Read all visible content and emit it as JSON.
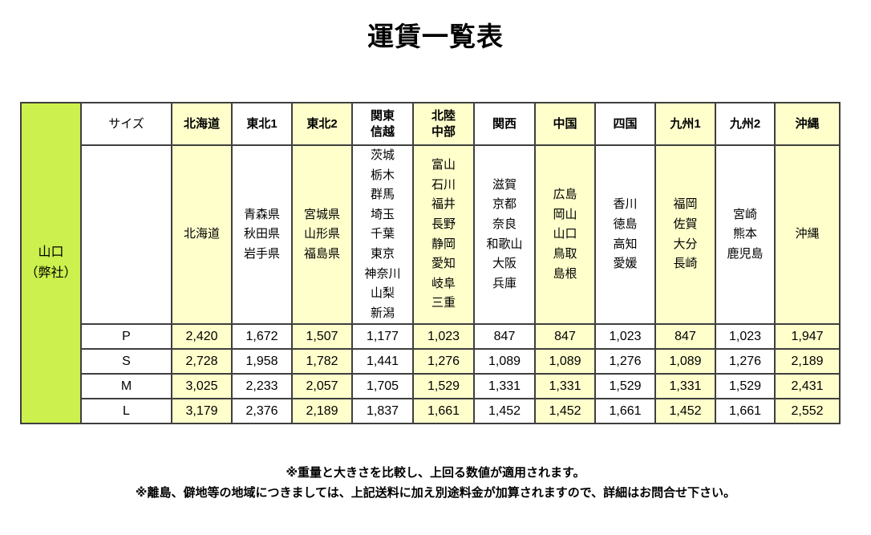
{
  "title": "運賃一覧表",
  "colors": {
    "origin_green": "#ccf04d",
    "pale_yellow": "#ffffcc",
    "border": "#3f3f3f",
    "text": "#000000"
  },
  "table": {
    "origin_label": "山口\n（弊社）",
    "size_header": "サイズ",
    "regions": [
      {
        "label": "北海道",
        "prefectures": [
          "北海道"
        ]
      },
      {
        "label": "東北1",
        "prefectures": [
          "青森県",
          "秋田県",
          "岩手県"
        ]
      },
      {
        "label": "東北2",
        "prefectures": [
          "宮城県",
          "山形県",
          "福島県"
        ]
      },
      {
        "label": "関東\n信越",
        "prefectures": [
          "茨城",
          "栃木",
          "群馬",
          "埼玉",
          "千葉",
          "東京",
          "神奈川",
          "山梨",
          "新潟"
        ]
      },
      {
        "label": "北陸\n中部",
        "prefectures": [
          "富山",
          "石川",
          "福井",
          "長野",
          "静岡",
          "愛知",
          "岐阜",
          "三重"
        ]
      },
      {
        "label": "関西",
        "prefectures": [
          "滋賀",
          "京都",
          "奈良",
          "和歌山",
          "大阪",
          "兵庫"
        ]
      },
      {
        "label": "中国",
        "prefectures": [
          "広島",
          "岡山",
          "山口",
          "鳥取",
          "島根"
        ]
      },
      {
        "label": "四国",
        "prefectures": [
          "香川",
          "徳島",
          "高知",
          "愛媛"
        ]
      },
      {
        "label": "九州1",
        "prefectures": [
          "福岡",
          "佐賀",
          "大分",
          "長崎"
        ]
      },
      {
        "label": "九州2",
        "prefectures": [
          "宮崎",
          "熊本",
          "鹿児島"
        ]
      },
      {
        "label": "沖縄",
        "prefectures": [
          "沖縄"
        ]
      }
    ],
    "size_rows": [
      {
        "label": "P",
        "values": [
          "2,420",
          "1,672",
          "1,507",
          "1,177",
          "1,023",
          "847",
          "847",
          "1,023",
          "847",
          "1,023",
          "1,947"
        ]
      },
      {
        "label": "S",
        "values": [
          "2,728",
          "1,958",
          "1,782",
          "1,441",
          "1,276",
          "1,089",
          "1,089",
          "1,276",
          "1,089",
          "1,276",
          "2,189"
        ]
      },
      {
        "label": "M",
        "values": [
          "3,025",
          "2,233",
          "2,057",
          "1,705",
          "1,529",
          "1,331",
          "1,331",
          "1,529",
          "1,331",
          "1,529",
          "2,431"
        ]
      },
      {
        "label": "L",
        "values": [
          "3,179",
          "2,376",
          "2,189",
          "1,837",
          "1,661",
          "1,452",
          "1,452",
          "1,661",
          "1,452",
          "1,661",
          "2,552"
        ]
      }
    ]
  },
  "notes": [
    "※重量と大きさを比較し、上回る数値が適用されます。",
    "※離島、僻地等の地域につきましては、上記送料に加え別途料金が加算されますので、詳細はお問合せ下さい。"
  ]
}
